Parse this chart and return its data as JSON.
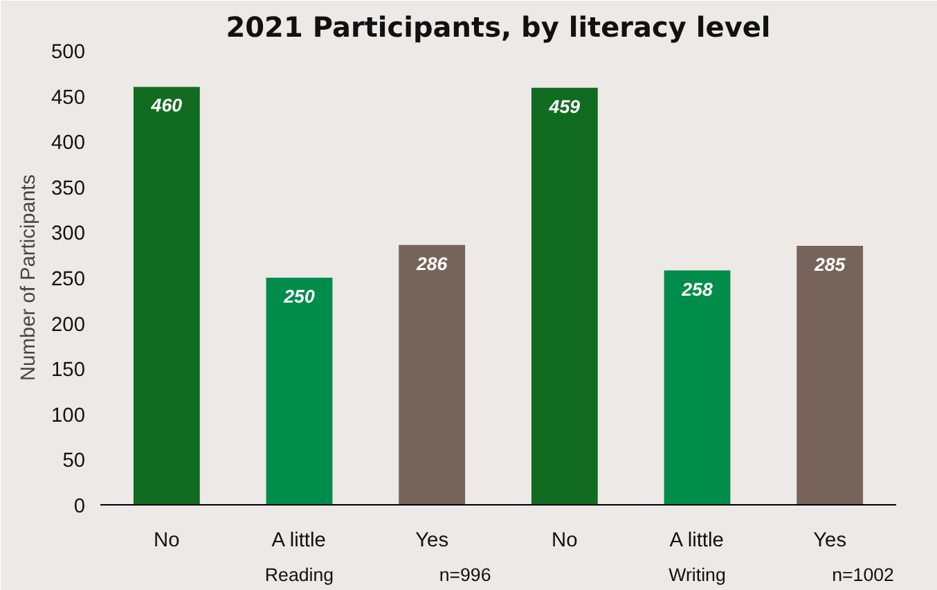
{
  "chart_data": {
    "type": "bar",
    "title": "2021 Participants, by literacy level",
    "ylabel": "Number of Participants",
    "categories": [
      "No",
      "A little",
      "Yes",
      "No",
      "A little",
      "Yes"
    ],
    "values": [
      460,
      250,
      286,
      459,
      258,
      285
    ],
    "colors": [
      "#116b21",
      "#008c4a",
      "#76645a",
      "#116b21",
      "#008c4a",
      "#76645a"
    ],
    "ylim": [
      0,
      500
    ],
    "yticks": [
      0,
      50,
      100,
      150,
      200,
      250,
      300,
      350,
      400,
      450,
      500
    ],
    "data_labels": true,
    "grid": false,
    "annotations": [
      "Reading",
      "n=996",
      "Writing",
      "n=1002"
    ]
  }
}
